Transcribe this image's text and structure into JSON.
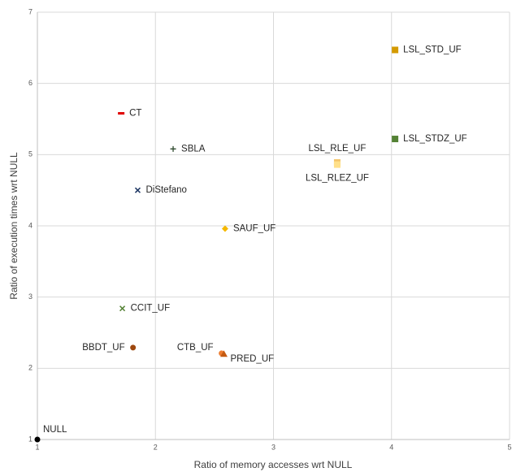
{
  "chart_data": {
    "type": "scatter",
    "x_label": "Ratio of memory accesses wrt NULL",
    "y_label": "Ratio of execution times wrt NULL",
    "xlim": [
      1,
      5
    ],
    "ylim": [
      1,
      7
    ],
    "xticks": [
      1,
      2,
      3,
      4,
      5
    ],
    "yticks": [
      1,
      2,
      3,
      4,
      5,
      6,
      7
    ],
    "grid": true,
    "series": [
      {
        "name": "NULL",
        "color": "#000000",
        "marker": "circle",
        "x": [
          1
        ],
        "y": [
          1
        ]
      },
      {
        "name": "CT",
        "color": "#e00000",
        "marker": "dash",
        "x": [
          1.71
        ],
        "y": [
          5.58
        ]
      },
      {
        "name": "SBLA",
        "color": "#2e4a2e",
        "marker": "plus",
        "x": [
          2.15
        ],
        "y": [
          5.08
        ]
      },
      {
        "name": "DiStefano",
        "color": "#1f3864",
        "marker": "x",
        "x": [
          1.85
        ],
        "y": [
          4.5
        ]
      },
      {
        "name": "SAUF_UF",
        "color": "#f5b800",
        "marker": "diamond",
        "x": [
          2.59
        ],
        "y": [
          3.96
        ]
      },
      {
        "name": "LSL_STD_UF",
        "color": "#d49a00",
        "marker": "square",
        "x": [
          4.03
        ],
        "y": [
          6.47
        ]
      },
      {
        "name": "LSL_STDZ_UF",
        "color": "#548235",
        "marker": "square",
        "x": [
          4.03
        ],
        "y": [
          5.22
        ]
      },
      {
        "name": "LSL_RLE_UF",
        "color": "#f4c46a",
        "marker": "square",
        "x": [
          3.54
        ],
        "y": [
          4.89
        ]
      },
      {
        "name": "LSL_RLEZ_UF",
        "color": "#ffe08a",
        "marker": "square",
        "x": [
          3.54
        ],
        "y": [
          4.86
        ]
      },
      {
        "name": "CCIT_UF",
        "color": "#548235",
        "marker": "x",
        "x": [
          1.72
        ],
        "y": [
          2.84
        ]
      },
      {
        "name": "BBDT_UF",
        "color": "#9e480e",
        "marker": "circle",
        "x": [
          1.81
        ],
        "y": [
          2.29
        ]
      },
      {
        "name": "CTB_UF",
        "color": "#ed7d31",
        "marker": "circle",
        "x": [
          2.56
        ],
        "y": [
          2.21
        ]
      },
      {
        "name": "PRED_UF",
        "color": "#c55a11",
        "marker": "triangle",
        "x": [
          2.58
        ],
        "y": [
          2.2
        ]
      }
    ]
  }
}
